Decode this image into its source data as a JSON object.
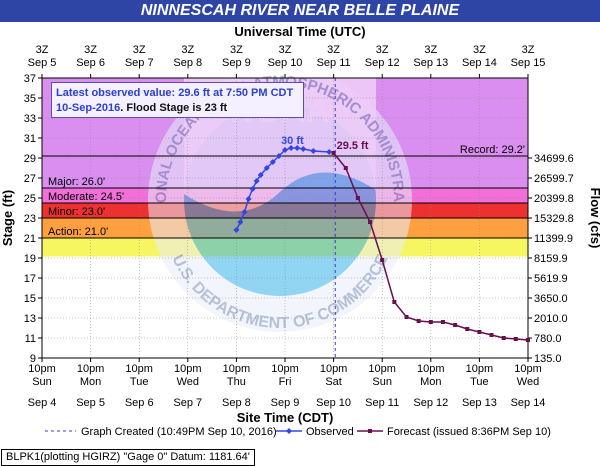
{
  "title": "NINNESCAH RIVER NEAR BELLE PLAINE",
  "top_axis_title": "Universal Time (UTC)",
  "bottom_axis_title": "Site Time (CDT)",
  "left_axis_title": "Stage (ft)",
  "right_axis_title": "Flow (cfs)",
  "info_box": {
    "line1": "Latest observed value: 29.6 ft at 7:50 PM CDT",
    "date": "10-Sep-2016",
    "flood_stage": "Flood Stage is 23 ft"
  },
  "legend": {
    "created": "Graph Created (10:49PM Sep 10, 2016)",
    "observed": "Observed",
    "forecast": "Forecast (issued 8:36PM Sep 10)"
  },
  "footer": "BLPK1(plotting HGIRZ) \"Gage 0\" Datum: 1181.64'",
  "watermark": {
    "ring_top": "NATIONAL OCEANIC AND ATMOSPHERIC ADMINISTRATION",
    "ring_bottom": "U.S. DEPARTMENT OF COMMERCE",
    "center": "NOAA"
  },
  "colors": {
    "title_bar": "#2e45a5",
    "record_zone": "#d98ef0",
    "major_zone": "#f26ed8",
    "moderate_zone": "#ee3030",
    "minor_zone": "#ffa040",
    "action_zone": "#f6f660",
    "observed": "#3246e6",
    "forecast": "#6a0e50",
    "threshold_line": "#000000"
  },
  "chart_data": {
    "type": "line",
    "title": "NINNESCAH RIVER NEAR BELLE PLAINE",
    "xlabel": "Site Time (CDT)",
    "ylabel": "Stage (ft)",
    "y2label": "Flow (cfs)",
    "ylim": [
      9,
      37
    ],
    "xlim": [
      "2016-09-04 22:00",
      "2016-09-14 22:00"
    ],
    "y_ticks": [
      9,
      11,
      13,
      15,
      17,
      19,
      21,
      23,
      25,
      27,
      29,
      31,
      33,
      35,
      37
    ],
    "flow_ticks": [
      {
        "stage": 9,
        "label": "135.0"
      },
      {
        "stage": 11,
        "label": "780.0"
      },
      {
        "stage": 13,
        "label": "2010.0"
      },
      {
        "stage": 15,
        "label": "3650.0"
      },
      {
        "stage": 17,
        "label": "5619.9"
      },
      {
        "stage": 19,
        "label": "8159.9"
      },
      {
        "stage": 21,
        "label": "11399.9"
      },
      {
        "stage": 23,
        "label": "15329.8"
      },
      {
        "stage": 25,
        "label": "20399.8"
      },
      {
        "stage": 27,
        "label": "26599.7"
      },
      {
        "stage": 29,
        "label": "34699.6"
      }
    ],
    "bottom_ticks": [
      {
        "time": "2016-09-04 22:00",
        "line1": "10pm",
        "line2": "Sun",
        "line3": "Sep 4"
      },
      {
        "time": "2016-09-05 22:00",
        "line1": "10pm",
        "line2": "Mon",
        "line3": "Sep 5"
      },
      {
        "time": "2016-09-06 22:00",
        "line1": "10pm",
        "line2": "Tue",
        "line3": "Sep 6"
      },
      {
        "time": "2016-09-07 22:00",
        "line1": "10pm",
        "line2": "Wed",
        "line3": "Sep 7"
      },
      {
        "time": "2016-09-08 22:00",
        "line1": "10pm",
        "line2": "Thu",
        "line3": "Sep 8"
      },
      {
        "time": "2016-09-09 22:00",
        "line1": "10pm",
        "line2": "Fri",
        "line3": "Sep 9"
      },
      {
        "time": "2016-09-10 22:00",
        "line1": "10pm",
        "line2": "Sat",
        "line3": "Sep 10"
      },
      {
        "time": "2016-09-11 22:00",
        "line1": "10pm",
        "line2": "Sun",
        "line3": "Sep 11"
      },
      {
        "time": "2016-09-12 22:00",
        "line1": "10pm",
        "line2": "Mon",
        "line3": "Sep 12"
      },
      {
        "time": "2016-09-13 22:00",
        "line1": "10pm",
        "line2": "Tue",
        "line3": "Sep 13"
      },
      {
        "time": "2016-09-14 22:00",
        "line1": "10pm",
        "line2": "Wed",
        "line3": "Sep 14"
      }
    ],
    "top_ticks": [
      {
        "time": "2016-09-04 22:00",
        "line1": "3Z",
        "line2": "Sep 5"
      },
      {
        "time": "2016-09-05 22:00",
        "line1": "3Z",
        "line2": "Sep 6"
      },
      {
        "time": "2016-09-06 22:00",
        "line1": "3Z",
        "line2": "Sep 7"
      },
      {
        "time": "2016-09-07 22:00",
        "line1": "3Z",
        "line2": "Sep 8"
      },
      {
        "time": "2016-09-08 22:00",
        "line1": "3Z",
        "line2": "Sep 9"
      },
      {
        "time": "2016-09-09 22:00",
        "line1": "3Z",
        "line2": "Sep 10"
      },
      {
        "time": "2016-09-10 22:00",
        "line1": "3Z",
        "line2": "Sep 11"
      },
      {
        "time": "2016-09-11 22:00",
        "line1": "3Z",
        "line2": "Sep 12"
      },
      {
        "time": "2016-09-12 22:00",
        "line1": "3Z",
        "line2": "Sep 13"
      },
      {
        "time": "2016-09-13 22:00",
        "line1": "3Z",
        "line2": "Sep 14"
      },
      {
        "time": "2016-09-14 22:00",
        "line1": "3Z",
        "line2": "Sep 15"
      }
    ],
    "stages": [
      {
        "name": "Record",
        "value": 29.2,
        "label": "Record: 29.2'"
      },
      {
        "name": "Major",
        "value": 26.0,
        "label": "Major: 26.0'"
      },
      {
        "name": "Moderate",
        "value": 24.5,
        "label": "Moderate: 24.5'"
      },
      {
        "name": "Minor",
        "value": 23.0,
        "label": "Minor: 23.0'"
      },
      {
        "name": "Action",
        "value": 21.0,
        "label": "Action: 21.0'"
      }
    ],
    "graph_created_time": "2016-09-10 22:49",
    "series": [
      {
        "name": "Observed",
        "points": [
          [
            "2016-09-08 22:00",
            21.8
          ],
          [
            "2016-09-09 00:00",
            22.6
          ],
          [
            "2016-09-09 02:00",
            23.6
          ],
          [
            "2016-09-09 04:00",
            24.9
          ],
          [
            "2016-09-09 06:00",
            25.9
          ],
          [
            "2016-09-09 08:00",
            26.7
          ],
          [
            "2016-09-09 10:00",
            27.3
          ],
          [
            "2016-09-09 13:00",
            28.0
          ],
          [
            "2016-09-09 16:00",
            28.6
          ],
          [
            "2016-09-09 19:00",
            29.2
          ],
          [
            "2016-09-09 22:00",
            29.8
          ],
          [
            "2016-09-10 01:00",
            30.0
          ],
          [
            "2016-09-10 04:00",
            30.0
          ],
          [
            "2016-09-10 07:00",
            29.9
          ],
          [
            "2016-09-10 12:00",
            29.7
          ],
          [
            "2016-09-10 19:50",
            29.6
          ]
        ]
      },
      {
        "name": "Forecast",
        "points": [
          [
            "2016-09-10 22:00",
            29.5
          ],
          [
            "2016-09-11 04:00",
            28.0
          ],
          [
            "2016-09-11 10:00",
            25.0
          ],
          [
            "2016-09-11 16:00",
            22.6
          ],
          [
            "2016-09-11 22:00",
            18.8
          ],
          [
            "2016-09-12 04:00",
            14.6
          ],
          [
            "2016-09-12 10:00",
            13.1
          ],
          [
            "2016-09-12 16:00",
            12.7
          ],
          [
            "2016-09-12 22:00",
            12.6
          ],
          [
            "2016-09-13 04:00",
            12.6
          ],
          [
            "2016-09-13 10:00",
            12.3
          ],
          [
            "2016-09-13 16:00",
            11.9
          ],
          [
            "2016-09-13 22:00",
            11.6
          ],
          [
            "2016-09-14 04:00",
            11.3
          ],
          [
            "2016-09-14 10:00",
            11.0
          ],
          [
            "2016-09-14 16:00",
            10.9
          ],
          [
            "2016-09-14 22:00",
            10.8
          ]
        ]
      }
    ],
    "annotations": [
      {
        "text": "30 ft",
        "time": "2016-09-10 01:00",
        "stage": 30.0,
        "series": "Observed"
      },
      {
        "text": "29.5 ft",
        "time": "2016-09-10 22:00",
        "stage": 29.5,
        "series": "Forecast"
      }
    ]
  }
}
